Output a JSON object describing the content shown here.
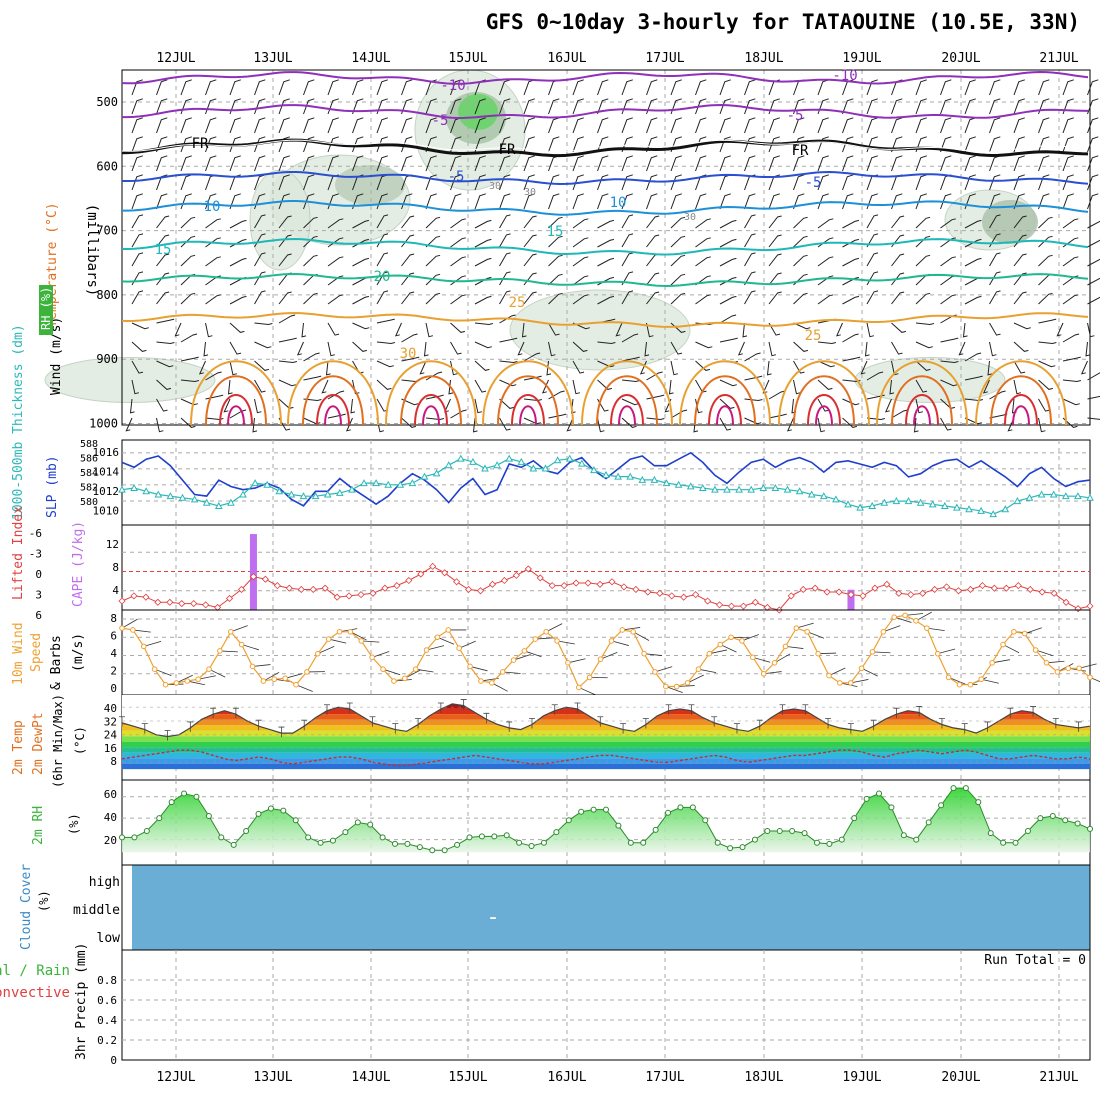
{
  "title": "GFS 0~10day 3-hourly for TATAOUINE (10.5E, 33N)",
  "date_labels": [
    "12JUL",
    "13JUL",
    "14JUL",
    "15JUL",
    "16JUL",
    "17JUL",
    "18JUL",
    "19JUL",
    "20JUL",
    "21JUL"
  ],
  "upper_panel": {
    "ylabel_wind": "Wind (m/s)",
    "ylabel_temp": "Temperature (°C)",
    "ylabel_rh": "RH (%)",
    "ylabel_pressure": "(millibars)",
    "pressure_ticks": [
      "500",
      "600",
      "700",
      "800",
      "900",
      "1000"
    ],
    "contour_labels": [
      "-10",
      "-10",
      "-5",
      "-5",
      "FR",
      "FR",
      "FR",
      "-5",
      "-5",
      "10",
      "10",
      "15",
      "15",
      "20",
      "25",
      "25",
      "30",
      "30",
      "30",
      "30"
    ]
  },
  "slp_panel": {
    "ylabel_thickness": "1000-500mb Thickness (dm)",
    "ylabel_slp": "SLP (mb)",
    "thickness_ticks": [
      "588",
      "586",
      "584",
      "582",
      "580"
    ],
    "slp_ticks": [
      "1016",
      "1014",
      "1012",
      "1010"
    ]
  },
  "cape_panel": {
    "ylabel_li": "Lifted Index",
    "ylabel_cape": "CAPE (J/kg)",
    "li_ticks": [
      "-6",
      "-3",
      "0",
      "3",
      "6"
    ],
    "cape_ticks": [
      "12",
      "8",
      "4"
    ]
  },
  "wind_panel": {
    "ylabel": "10m Wind Speed & Barbs (m/s)",
    "ticks": [
      "8",
      "6",
      "4",
      "2",
      "0"
    ]
  },
  "temp_panel": {
    "ylabel": "2m Temp 2m DewPt (6hr Min/Max) (°C)",
    "ticks": [
      "40",
      "32",
      "24",
      "16",
      "8"
    ]
  },
  "rh_panel": {
    "ylabel": "2m RH (%)",
    "ticks": [
      "60",
      "40",
      "20"
    ]
  },
  "cloud_panel": {
    "ylabel": "Cloud Cover (%)",
    "levels": [
      "high",
      "middle",
      "low"
    ],
    "marker": "-"
  },
  "precip_panel": {
    "ylabel_total": "Total / Rain",
    "ylabel_conv": "Convective",
    "ylabel": "3hr Precip (mm)",
    "run_total": "Run Total = 0",
    "ticks": [
      "0.8",
      "0.6",
      "0.4",
      "0.2",
      "0"
    ]
  },
  "colors": {
    "slp": "#1f3fcc",
    "thickness": "#2bb8b8",
    "cape": "#c06ef0",
    "lifted_index": "#e04040",
    "wind": "#f0a030",
    "rh": "#3cb43c",
    "cloud": "#6aaed6"
  },
  "chart_data": [
    {
      "type": "line",
      "title": "1000-500mb Thickness (dm) / SLP (mb)",
      "series": [
        {
          "name": "SLP (mb)",
          "values": [
            1014.8,
            1014.2,
            1015.2,
            1015.6,
            1014.4,
            1012.6,
            1010.8,
            1010.6,
            1012.6,
            1011.8,
            1011.4,
            1011.6,
            1012.2,
            1011.6,
            1010.2,
            1009.4,
            1011.2,
            1011.2,
            1012.8,
            1011.6,
            1010.6,
            1009.6,
            1010.6,
            1012.2,
            1013.4,
            1012.6,
            1011.4,
            1009.8,
            1011.6,
            1012.8,
            1010.8,
            1011.4,
            1014.6,
            1014.2,
            1015.0,
            1013.8,
            1013.4,
            1014.8,
            1015.4,
            1013.8,
            1012.8,
            1014.0,
            1015.2,
            1015.6,
            1014.4,
            1014.4,
            1015.2,
            1016.0,
            1014.8,
            1013.2,
            1012.2,
            1013.6,
            1014.8,
            1015.2,
            1014.2,
            1015.0,
            1015.4,
            1014.8,
            1013.6,
            1014.8,
            1015.0,
            1014.6,
            1014.2,
            1014.8,
            1014.4,
            1013.0,
            1013.4,
            1014.4,
            1015.0,
            1015.2,
            1014.2,
            1015.0,
            1014.0,
            1013.0,
            1011.8,
            1013.4,
            1014.2,
            1012.8,
            1011.8,
            1012.4,
            1012.6
          ]
        },
        {
          "name": "1000-500mb Thickness (dm)",
          "values": [
            582.6,
            582.8,
            582.4,
            582.0,
            581.8,
            581.6,
            581.4,
            581.0,
            580.6,
            581.0,
            582.0,
            583.4,
            583.2,
            582.4,
            582.0,
            581.8,
            581.8,
            582.0,
            582.2,
            582.6,
            583.4,
            583.4,
            583.2,
            583.2,
            583.4,
            584.2,
            584.6,
            585.6,
            586.4,
            586.0,
            585.2,
            585.6,
            586.4,
            586.0,
            585.2,
            585.2,
            586.2,
            586.4,
            585.8,
            585.0,
            584.4,
            584.2,
            584.2,
            583.8,
            583.8,
            583.4,
            583.2,
            583.0,
            582.8,
            582.6,
            582.6,
            582.6,
            582.6,
            582.8,
            582.8,
            582.6,
            582.4,
            582.0,
            581.8,
            581.4,
            580.8,
            580.4,
            580.6,
            581.0,
            581.2,
            581.2,
            581.0,
            580.8,
            580.6,
            580.4,
            580.2,
            580.0,
            579.6,
            580.2,
            581.2,
            581.6,
            582.0,
            582.0,
            581.8,
            581.8,
            581.6
          ]
        }
      ],
      "ylim_slp": [
        1008,
        1016
      ],
      "ylim_thickness": [
        579,
        588
      ]
    },
    {
      "type": "line",
      "title": "Lifted Index / CAPE (J/kg)",
      "series": [
        {
          "name": "Lifted Index",
          "values": [
            4.6,
            3.8,
            4.0,
            4.8,
            4.8,
            5.0,
            5.0,
            5.2,
            5.6,
            4.2,
            2.8,
            0.8,
            1.2,
            2.2,
            2.6,
            2.8,
            2.8,
            2.6,
            4.0,
            3.8,
            3.6,
            3.4,
            2.6,
            2.2,
            1.4,
            0.4,
            -0.8,
            0.2,
            1.6,
            2.8,
            3.0,
            2.0,
            1.4,
            0.6,
            -0.4,
            1.0,
            2.2,
            2.2,
            1.8,
            1.8,
            2.0,
            1.6,
            2.4,
            2.8,
            3.2,
            3.4,
            3.8,
            4.0,
            3.6,
            4.6,
            5.2,
            5.4,
            5.4,
            4.8,
            5.6,
            6.0,
            3.8,
            2.8,
            2.6,
            3.2,
            3.2,
            3.6,
            3.8,
            2.6,
            2.0,
            3.4,
            3.6,
            3.4,
            2.8,
            2.4,
            3.0,
            2.8,
            2.2,
            2.6,
            2.6,
            2.2,
            2.8,
            3.2,
            3.4,
            4.8,
            5.8,
            5.4
          ]
        },
        {
          "name": "CAPE (J/kg)",
          "values": [
            0,
            0,
            0,
            0,
            0,
            0,
            0,
            0,
            0,
            0,
            0,
            15,
            0,
            0,
            0,
            0,
            0,
            0,
            0,
            0,
            0,
            0,
            0,
            0,
            0,
            0,
            0,
            0,
            0,
            0,
            0,
            0,
            0,
            0,
            0,
            0,
            0,
            0,
            0,
            0,
            0,
            0,
            0,
            0,
            0,
            0,
            0,
            0,
            0,
            0,
            0,
            0,
            0,
            0,
            0,
            0,
            0,
            0,
            0,
            0,
            0,
            4,
            0,
            0,
            0,
            0,
            0,
            0,
            0,
            0,
            0,
            0,
            0,
            0,
            0,
            0,
            0,
            0,
            0,
            0,
            0,
            0
          ]
        }
      ],
      "ylim_li": [
        6,
        -6
      ],
      "ylim_cape": [
        0,
        16
      ]
    },
    {
      "type": "line",
      "title": "10m Wind Speed & Barbs (m/s)",
      "series": [
        {
          "name": "10m Wind Speed",
          "values": [
            7.0,
            6.8,
            5.0,
            2.5,
            0.8,
            1.0,
            1.2,
            1.4,
            2.5,
            4.5,
            6.6,
            5.2,
            2.8,
            1.2,
            1.4,
            1.5,
            0.8,
            2.2,
            4.2,
            5.8,
            6.6,
            6.6,
            5.6,
            3.8,
            2.5,
            1.2,
            1.5,
            2.5,
            4.6,
            6.0,
            6.8,
            4.8,
            2.8,
            1.2,
            1.0,
            2.2,
            3.5,
            4.5,
            5.8,
            6.6,
            5.6,
            3.2,
            0.5,
            1.6,
            3.6,
            5.6,
            6.8,
            6.6,
            4.2,
            2.2,
            0.6,
            0.6,
            1.0,
            2.5,
            4.2,
            5.2,
            6.0,
            5.6,
            3.8,
            2.0,
            3.2,
            5.0,
            7.0,
            6.6,
            4.2,
            1.8,
            1.0,
            1.0,
            2.6,
            4.4,
            6.6,
            8.2,
            8.4,
            7.8,
            7.0,
            4.2,
            1.6,
            0.8,
            0.8,
            1.4,
            3.2,
            5.2,
            6.6,
            6.4,
            4.6,
            3.2,
            2.2,
            2.6,
            2.6,
            1.6
          ]
        }
      ],
      "ylim": [
        0,
        8
      ]
    },
    {
      "type": "area",
      "title": "2m Temp / 2m DewPt",
      "series": [
        {
          "name": "2m Temp",
          "values": [
            31,
            29,
            27,
            24,
            23,
            24,
            28,
            33,
            36,
            38,
            36,
            32,
            29,
            27,
            25,
            25,
            29,
            34,
            38,
            40,
            39,
            35,
            31,
            29,
            27,
            26,
            30,
            35,
            39,
            42,
            41,
            37,
            33,
            30,
            28,
            27,
            30,
            35,
            38,
            40,
            39,
            35,
            31,
            29,
            27,
            26,
            30,
            35,
            38,
            39,
            38,
            34,
            31,
            29,
            27,
            26,
            29,
            34,
            38,
            39,
            38,
            34,
            30,
            28,
            27,
            26,
            29,
            33,
            36,
            38,
            37,
            33,
            30,
            28,
            27,
            25,
            28,
            32,
            36,
            38,
            37,
            33,
            30,
            29,
            28,
            29
          ]
        },
        {
          "name": "2m DewPt",
          "values": [
            10,
            11,
            12,
            13,
            14,
            15,
            15,
            14,
            12,
            10,
            9,
            10,
            11,
            10,
            8,
            7,
            8,
            9,
            10,
            11,
            11,
            10,
            8,
            7,
            6,
            6,
            7,
            8,
            9,
            10,
            11,
            12,
            11,
            10,
            9,
            8,
            7,
            7,
            8,
            9,
            10,
            11,
            12,
            12,
            11,
            10,
            9,
            8,
            8,
            9,
            10,
            11,
            12,
            11,
            9,
            8,
            9,
            10,
            11,
            12,
            12,
            13,
            14,
            15,
            15,
            14,
            12,
            11,
            13,
            14,
            15,
            14,
            13,
            14,
            15,
            14,
            12,
            10,
            10,
            11,
            12,
            11,
            10,
            10,
            11,
            10
          ]
        }
      ],
      "ylim": [
        0,
        46
      ]
    },
    {
      "type": "area",
      "title": "2m RH (%)",
      "series": [
        {
          "name": "2m RH",
          "values": [
            22,
            22,
            28,
            40,
            55,
            63,
            60,
            42,
            22,
            15,
            28,
            44,
            49,
            47,
            38,
            22,
            17,
            19,
            27,
            36,
            34,
            22,
            16,
            16,
            13,
            10,
            10,
            15,
            22,
            23,
            23,
            24,
            17,
            14,
            17,
            27,
            38,
            46,
            48,
            48,
            33,
            17,
            17,
            29,
            45,
            50,
            50,
            38,
            17,
            12,
            13,
            20,
            28,
            28,
            28,
            26,
            17,
            16,
            20,
            40,
            58,
            63,
            50,
            24,
            20,
            36,
            52,
            68,
            68,
            55,
            26,
            17,
            17,
            28,
            40,
            42,
            38,
            35,
            30
          ]
        }
      ],
      "ylim": [
        0,
        70
      ]
    },
    {
      "type": "bar",
      "title": "3hr Precip (mm)",
      "series": [
        {
          "name": "Total / Rain",
          "values": [
            0
          ]
        },
        {
          "name": "Convective",
          "values": [
            0
          ]
        }
      ],
      "ylim": [
        0,
        1
      ]
    }
  ]
}
